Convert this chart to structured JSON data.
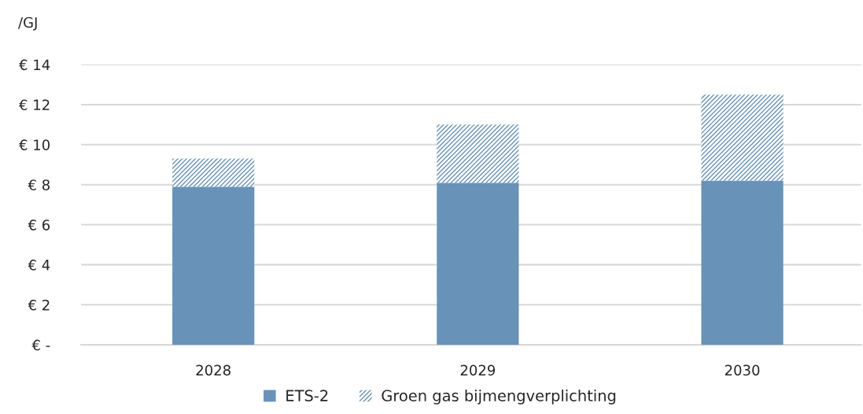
{
  "chart_data": {
    "type": "bar",
    "ylabel": "/GJ",
    "categories": [
      "2028",
      "2029",
      "2030"
    ],
    "stacked": true,
    "series": [
      {
        "name": "ETS-2",
        "color": "#6892b8",
        "values": [
          7.9,
          8.1,
          8.2
        ]
      },
      {
        "name": "Groen gas bijmengverplichting",
        "color": "#6892b8",
        "values": [
          1.4,
          2.9,
          4.3
        ]
      }
    ],
    "ylim": [
      0,
      14
    ],
    "yticks": [
      {
        "value": 0,
        "label": "€ -"
      },
      {
        "value": 2,
        "label": "€ 2"
      },
      {
        "value": 4,
        "label": "€ 4"
      },
      {
        "value": 6,
        "label": "€ 6"
      },
      {
        "value": 8,
        "label": "€ 8"
      },
      {
        "value": 10,
        "label": "€ 10"
      },
      {
        "value": 12,
        "label": "€ 12"
      },
      {
        "value": 14,
        "label": "€ 14"
      }
    ],
    "grid": "y",
    "legend": "bottom"
  }
}
